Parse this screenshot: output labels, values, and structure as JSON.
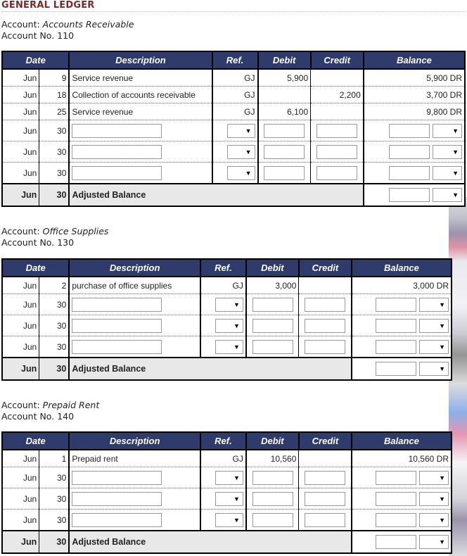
{
  "page_title": "GENERAL LEDGER",
  "account_label": "Account:",
  "account_no_label": "Account No.",
  "headers": {
    "date": "Date",
    "description": "Description",
    "ref": "Ref.",
    "debit": "Debit",
    "credit": "Credit",
    "balance": "Balance"
  },
  "adjusted_balance_label": "Adjusted Balance",
  "accounts": [
    {
      "name": "Accounts Receivable",
      "number": "110",
      "rows": [
        {
          "month": "Jun",
          "day": "9",
          "description": "Service revenue",
          "ref": "GJ",
          "debit": "5,900",
          "credit": "",
          "balance": "5,900 DR"
        },
        {
          "month": "Jun",
          "day": "18",
          "description": "Collection of accounts receivable",
          "ref": "GJ",
          "debit": "",
          "credit": "2,200",
          "balance": "3,700 DR"
        },
        {
          "month": "Jun",
          "day": "25",
          "description": "Service revenue",
          "ref": "GJ",
          "debit": "6,100",
          "credit": "",
          "balance": "9,800 DR"
        }
      ],
      "input_rows": [
        {
          "month": "Jun",
          "day": "30"
        },
        {
          "month": "Jun",
          "day": "30"
        },
        {
          "month": "Jun",
          "day": "30"
        }
      ],
      "adjusted": {
        "month": "Jun",
        "day": "30"
      }
    },
    {
      "name": "Office Supplies",
      "number": "130",
      "rows": [
        {
          "month": "Jun",
          "day": "2",
          "description": "purchase of office supplies",
          "ref": "GJ",
          "debit": "3,000",
          "credit": "",
          "balance": "3,000 DR"
        }
      ],
      "input_rows": [
        {
          "month": "Jun",
          "day": "30"
        },
        {
          "month": "Jun",
          "day": "30"
        },
        {
          "month": "Jun",
          "day": "30"
        }
      ],
      "adjusted": {
        "month": "Jun",
        "day": "30"
      }
    },
    {
      "name": "Prepaid Rent",
      "number": "140",
      "rows": [
        {
          "month": "Jun",
          "day": "1",
          "description": "Prepaid rent",
          "ref": "GJ",
          "debit": "10,560",
          "credit": "",
          "balance": "10,560 DR"
        }
      ],
      "input_rows": [
        {
          "month": "Jun",
          "day": "30"
        },
        {
          "month": "Jun",
          "day": "30"
        },
        {
          "month": "Jun",
          "day": "30"
        }
      ],
      "adjusted": {
        "month": "Jun",
        "day": "30"
      }
    }
  ],
  "icons": {
    "dropdown": "chevron-down-icon"
  }
}
